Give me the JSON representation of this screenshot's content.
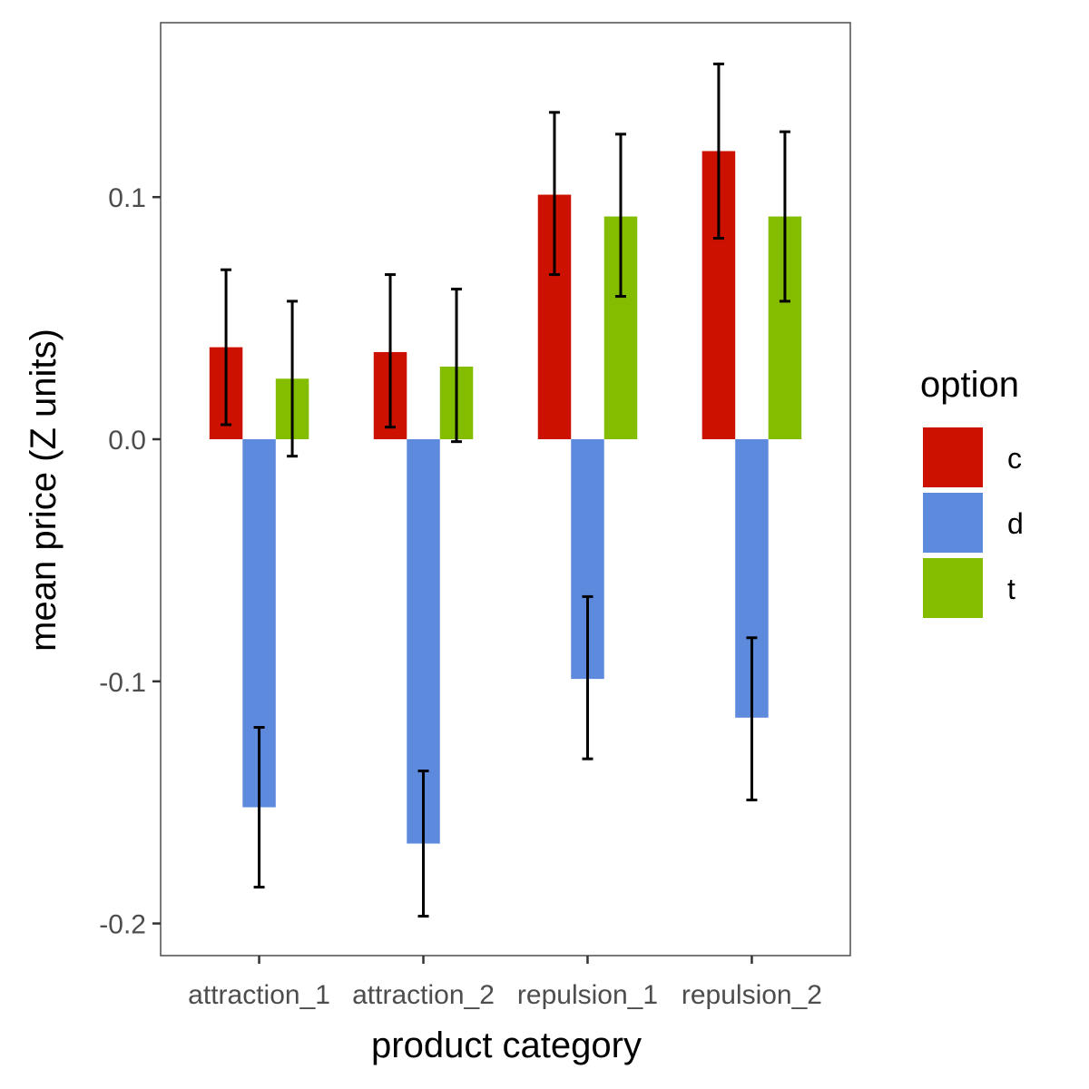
{
  "chart_data": {
    "type": "bar",
    "title": "",
    "xlabel": "product category",
    "ylabel": "mean price (Z units)",
    "categories": [
      "attraction_1",
      "attraction_2",
      "repulsion_1",
      "repulsion_2"
    ],
    "ylim": [
      -0.22,
      0.172
    ],
    "yticks": [
      0.1,
      0.0,
      -0.1,
      -0.2
    ],
    "ytick_labels": [
      "0.1",
      "0.0",
      "-0.1",
      "-0.2"
    ],
    "grid": false,
    "legend": {
      "title": "option",
      "position": "right"
    },
    "series": [
      {
        "name": "c",
        "color": "#cc1100",
        "values": [
          0.038,
          0.036,
          0.101,
          0.119
        ],
        "error_low": [
          0.006,
          0.005,
          0.068,
          0.083
        ],
        "error_high": [
          0.07,
          0.068,
          0.135,
          0.155
        ]
      },
      {
        "name": "d",
        "color": "#5e8ade",
        "values": [
          -0.152,
          -0.167,
          -0.099,
          -0.115
        ],
        "error_low": [
          -0.185,
          -0.197,
          -0.132,
          -0.149
        ],
        "error_high": [
          -0.119,
          -0.137,
          -0.065,
          -0.082
        ]
      },
      {
        "name": "t",
        "color": "#84bc00",
        "values": [
          0.025,
          0.03,
          0.092,
          0.092
        ],
        "error_low": [
          -0.007,
          -0.001,
          0.059,
          0.057
        ],
        "error_high": [
          0.057,
          0.062,
          0.126,
          0.127
        ]
      }
    ]
  }
}
